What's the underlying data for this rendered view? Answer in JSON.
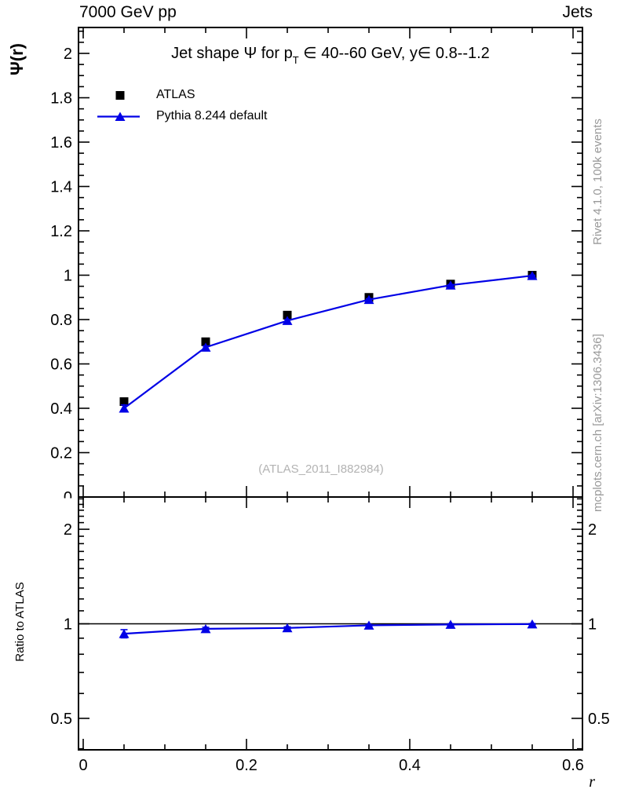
{
  "header": {
    "left_label": "7000 GeV pp",
    "right_label": "Jets"
  },
  "title_parts": {
    "pre": "Jet shape Ψ for p",
    "sub": "T",
    "post": " ∈ 40--60 GeV, y∈ 0.8--1.2"
  },
  "axes": {
    "y_top_label": "Ψ(r)",
    "y_bottom_label": "Ratio to ATLAS",
    "x_label": "r"
  },
  "legend": [
    {
      "label": "ATLAS",
      "marker": "square",
      "color": "#000000"
    },
    {
      "label": "Pythia 8.244 default",
      "marker": "triangle",
      "color": "#0000e6"
    }
  ],
  "watermark": "(ATLAS_2011_I882984)",
  "sidebar_texts": {
    "top_rotated": "Rivet 4.1.0,  100k events",
    "bottom_rotated": "mcplots.cern.ch [arXiv:1306.3436]"
  },
  "colors": {
    "pythia_blue": "#0000e6",
    "atlas_black": "#000000",
    "gray_text": "#999999",
    "watermark_gray": "#b3b3b3"
  },
  "chart_data": [
    {
      "type": "line",
      "panel": "main",
      "title": "Jet shape Ψ for pT ∈ 40--60 GeV, y∈ 0.8--1.2",
      "xlabel": "r",
      "ylabel": "Ψ(r)",
      "xlim": [
        -0.006,
        0.6115
      ],
      "ylim": [
        0,
        2.124
      ],
      "grid": false,
      "legend_position": "top-left",
      "x": [
        0.05,
        0.15,
        0.25,
        0.35,
        0.45,
        0.55
      ],
      "series": [
        {
          "name": "ATLAS",
          "marker": "square",
          "color": "#000000",
          "line": false,
          "values": [
            0.43,
            0.7,
            0.82,
            0.9,
            0.96,
            1.0
          ],
          "errors": [
            0.012,
            0.009,
            0.007,
            0.005,
            0.004,
            0.003
          ]
        },
        {
          "name": "Pythia 8.244 default",
          "marker": "triangle",
          "color": "#0000e6",
          "line": true,
          "values": [
            0.4,
            0.675,
            0.795,
            0.89,
            0.955,
            0.998
          ],
          "errors": [
            0.015,
            0.006,
            0.005,
            0.004,
            0.003,
            0.002
          ]
        }
      ],
      "xticks": {
        "values": [
          0,
          0.2,
          0.4,
          0.6
        ],
        "labels": [
          "0",
          "0.2",
          "0.4",
          "0.6"
        ]
      },
      "yticks": {
        "values": [
          0,
          0.2,
          0.4,
          0.6,
          0.8,
          1.0,
          1.2,
          1.4,
          1.6,
          1.8,
          2.0
        ],
        "labels": [
          "0",
          "0.2",
          "0.4",
          "0.6",
          "0.8",
          "1",
          "1.2",
          "1.4",
          "1.6",
          "1.8",
          "2"
        ]
      }
    },
    {
      "type": "line",
      "panel": "ratio",
      "ylabel": "Ratio to ATLAS",
      "yscale": "log",
      "xlim": [
        -0.006,
        0.6115
      ],
      "ylim": [
        0.397,
        2.53
      ],
      "reference_line": 1.0,
      "x": [
        0.05,
        0.15,
        0.25,
        0.35,
        0.45,
        0.55
      ],
      "series": [
        {
          "name": "Pythia 8.244 default / ATLAS",
          "marker": "triangle",
          "color": "#0000e6",
          "line": true,
          "values": [
            0.93,
            0.964,
            0.97,
            0.989,
            0.995,
            0.998
          ],
          "errors": [
            0.028,
            0.011,
            0.008,
            0.006,
            0.005,
            0.004
          ]
        }
      ],
      "yticks": {
        "values": [
          0.5,
          1,
          2
        ],
        "labels": [
          "0.5",
          "1",
          "2"
        ]
      }
    }
  ]
}
